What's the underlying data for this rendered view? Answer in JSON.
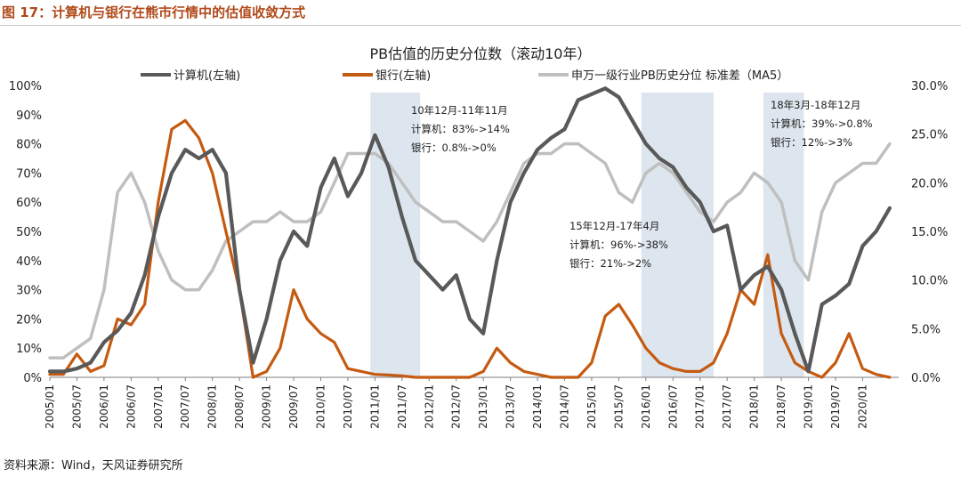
{
  "figure_title": "图 17：计算机与银行在熊市行情中的估值收敛方式",
  "source": "资料来源：Wind，天风证券研究所",
  "colors": {
    "computer": "#595959",
    "bank": "#c55a11",
    "stdev": "#bfbfbf",
    "band": "#dde6ee",
    "title": "#b04a1a"
  },
  "chart_data": {
    "type": "line",
    "title": "PB估值的历史分位数（滚动10年）",
    "legend_position": "top",
    "grid": false,
    "x": [
      "2005-01",
      "2005-04",
      "2005-07",
      "2005-10",
      "2006-01",
      "2006-04",
      "2006-07",
      "2006-10",
      "2007-01",
      "2007-04",
      "2007-07",
      "2007-10",
      "2008-01",
      "2008-04",
      "2008-07",
      "2008-10",
      "2009-01",
      "2009-04",
      "2009-07",
      "2009-10",
      "2010-01",
      "2010-04",
      "2010-07",
      "2010-10",
      "2011-01",
      "2011-04",
      "2011-07",
      "2011-10",
      "2012-01",
      "2012-04",
      "2012-07",
      "2012-10",
      "2013-01",
      "2013-04",
      "2013-07",
      "2013-10",
      "2014-01",
      "2014-04",
      "2014-07",
      "2014-10",
      "2015-01",
      "2015-04",
      "2015-07",
      "2015-10",
      "2016-01",
      "2016-04",
      "2016-07",
      "2016-10",
      "2017-01",
      "2017-04",
      "2017-07",
      "2017-10",
      "2018-01",
      "2018-04",
      "2018-07",
      "2018-10",
      "2019-01",
      "2019-04",
      "2019-07",
      "2019-10",
      "2020-01",
      "2020-04",
      "2020-07"
    ],
    "x_tick_labels": [
      "2005/01",
      "2005/07",
      "2006/01",
      "2006/07",
      "2007/01",
      "2007/07",
      "2008/01",
      "2008/07",
      "2009/01",
      "2009/07",
      "2010/01",
      "2010/07",
      "2011/01",
      "2011/07",
      "2012/01",
      "2012/07",
      "2013/01",
      "2013/07",
      "2014/01",
      "2014/07",
      "2015/01",
      "2015/07",
      "2016/01",
      "2016/07",
      "2017/01",
      "2017/07",
      "2018/01",
      "2018/07",
      "2019/01",
      "2019/07",
      "2020/01"
    ],
    "y_left": {
      "ticks": [
        "0%",
        "10%",
        "20%",
        "30%",
        "40%",
        "50%",
        "60%",
        "70%",
        "80%",
        "90%",
        "100%"
      ],
      "range": [
        0,
        100
      ]
    },
    "y_right": {
      "ticks": [
        "0.0%",
        "5.0%",
        "10.0%",
        "15.0%",
        "20.0%",
        "25.0%",
        "30.0%"
      ],
      "range": [
        0,
        30
      ]
    },
    "series": [
      {
        "name": "计算机(左轴)",
        "axis": "left",
        "values": [
          2,
          2,
          3,
          5,
          12,
          16,
          22,
          35,
          55,
          70,
          78,
          75,
          78,
          70,
          30,
          5,
          20,
          40,
          50,
          45,
          65,
          75,
          62,
          70,
          83,
          72,
          55,
          40,
          35,
          30,
          35,
          20,
          15,
          40,
          60,
          70,
          78,
          82,
          85,
          95,
          97,
          99,
          96,
          88,
          80,
          75,
          72,
          65,
          60,
          50,
          52,
          30,
          35,
          38,
          30,
          15,
          2,
          25,
          28,
          32,
          45,
          50,
          58
        ]
      },
      {
        "name": "银行(左轴)",
        "axis": "left",
        "values": [
          1,
          1,
          8,
          2,
          4,
          20,
          18,
          25,
          60,
          85,
          88,
          82,
          70,
          50,
          30,
          0,
          2,
          10,
          30,
          20,
          15,
          12,
          3,
          2,
          1,
          0.8,
          0.5,
          0,
          0,
          0,
          0,
          0,
          2,
          10,
          5,
          2,
          1,
          0,
          0,
          0,
          5,
          21,
          25,
          18,
          10,
          5,
          3,
          2,
          2,
          5,
          15,
          30,
          25,
          42,
          15,
          5,
          2,
          0,
          5,
          15,
          3,
          1,
          0
        ]
      },
      {
        "name": "申万一级行业PB历史分位 标准差（MA5）",
        "axis": "right",
        "values": [
          2,
          2,
          3,
          4,
          9,
          19,
          21,
          18,
          13,
          10,
          9,
          9,
          11,
          14,
          15,
          16,
          16,
          17,
          16,
          16,
          17,
          20,
          23,
          23,
          23,
          22,
          20,
          18,
          17,
          16,
          16,
          15,
          14,
          16,
          19,
          22,
          23,
          23,
          24,
          24,
          23,
          22,
          19,
          18,
          21,
          22,
          21,
          19,
          17,
          16,
          18,
          19,
          21,
          20,
          18,
          12,
          10,
          17,
          20,
          21,
          22,
          22,
          24
        ]
      }
    ],
    "highlight_periods": [
      {
        "start": "2010-12",
        "end": "2011-11",
        "lines": [
          "10年12月-11年11月",
          "计算机：83%->14%",
          "银行：0.8%->0%"
        ]
      },
      {
        "start": "2015-12",
        "end": "2017-04",
        "lines": [
          "15年12月-17年4月",
          "计算机：96%->38%",
          "银行：21%->2%"
        ]
      },
      {
        "start": "2018-03",
        "end": "2018-12",
        "lines": [
          "18年3月-18年12月",
          "计算机：39%->0.8%",
          "银行：12%->3%"
        ]
      }
    ]
  }
}
